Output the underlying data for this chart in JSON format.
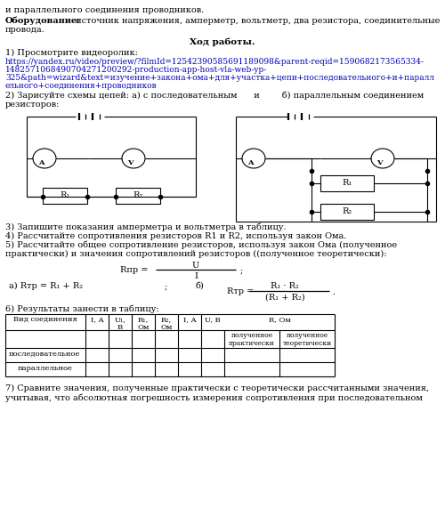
{
  "bg_color": "#ffffff",
  "text_color": "#000000",
  "link_color": "#0000bb",
  "line1": "и параллельного соединения проводников.",
  "equip_bold": "Оборудование:",
  "equip_rest": " источник напряжения, амперметр, вольтметр, два резистора, соединительные",
  "equip_line2": "провода.",
  "section_title": "Ход работы.",
  "item1": "1) Просмотрите видеоролик:",
  "url1": "https://yandex.ru/video/preview/?filmId=12542390585691189098&parent-reqid=1590682173565334-",
  "url2": "1482571068490704271200292-production-app-host-vla-web-yp-",
  "url3": "325&path=wizard&text=изучение+закона+ома+для+участка+цепи+последовательного+и+паралл",
  "url4": "ельного+соединения+проводников",
  "item2a": "2) Зарисуйте схемы цепей: а) с последовательным      и        б) параллельным соединением",
  "item2b": "резисторов:",
  "item3": "3) Запишите показания амперметра и вольтметра в таблицу.",
  "item4": "4) Рассчитайте сопротивления резисторов R1 и R2, используя закон Ома.",
  "item5a": "5) Рассчитайте общее сопротивление резисторов, используя закон Ома (полученное",
  "item5b": "практически) и значения сопротивлений резисторов ((полученное теоретически):",
  "item6": "6) Результаты занести в таблицу:",
  "item7a": "7) Сравните значения, полученные практически с теоретически рассчитанными значения,",
  "item7b": "учитывая, что абсолютная погрешность измерения сопротивления при последовательном",
  "row1": "последовательное",
  "row2": "параллельное"
}
